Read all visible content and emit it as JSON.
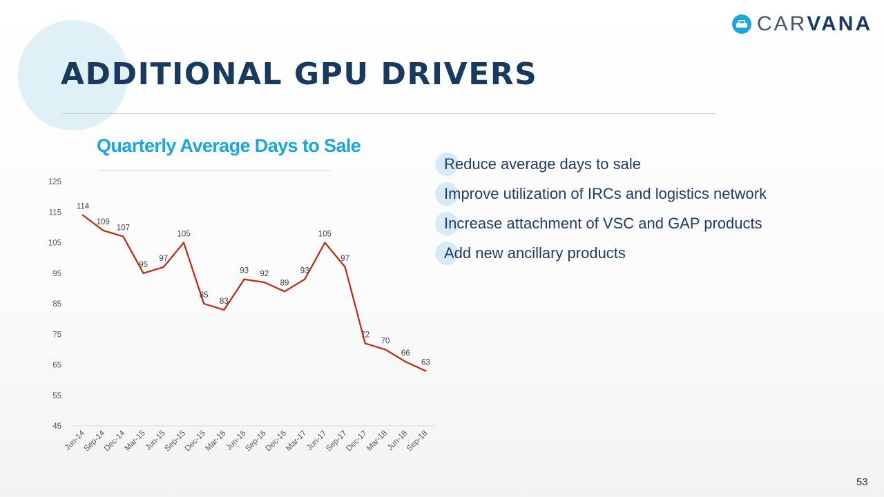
{
  "slide": {
    "title": "ADDITIONAL GPU DRIVERS",
    "page_number": "53",
    "logo_text_light": "CAR",
    "logo_text_bold": "VANA",
    "accent_color": "#1ba7dc",
    "navy_color": "#173a5e",
    "line_color": "#c0260d"
  },
  "bullets": [
    "Reduce average days to sale",
    "Improve utilization of IRCs and logistics network",
    "Increase attachment of VSC and GAP products",
    "Add new ancillary products"
  ],
  "chart_data": {
    "type": "line",
    "title": "Quarterly Average Days to Sale",
    "xlabel": "",
    "ylabel": "",
    "categories": [
      "Jun-14",
      "Sep-14",
      "Dec-14",
      "Mar-15",
      "Jun-15",
      "Sep-15",
      "Dec-15",
      "Mar-16",
      "Jun-16",
      "Sep-16",
      "Dec-16",
      "Mar-17",
      "Jun-17",
      "Sep-17",
      "Dec-17",
      "Mar-18",
      "Jun-18",
      "Sep-18"
    ],
    "values": [
      114,
      109,
      107,
      95,
      97,
      105,
      85,
      83,
      93,
      92,
      89,
      93,
      105,
      97,
      72,
      70,
      66,
      63
    ],
    "ylim": [
      45,
      125
    ],
    "yticks": [
      45,
      55,
      65,
      75,
      85,
      95,
      105,
      115,
      125
    ],
    "grid": false,
    "legend": "none"
  }
}
